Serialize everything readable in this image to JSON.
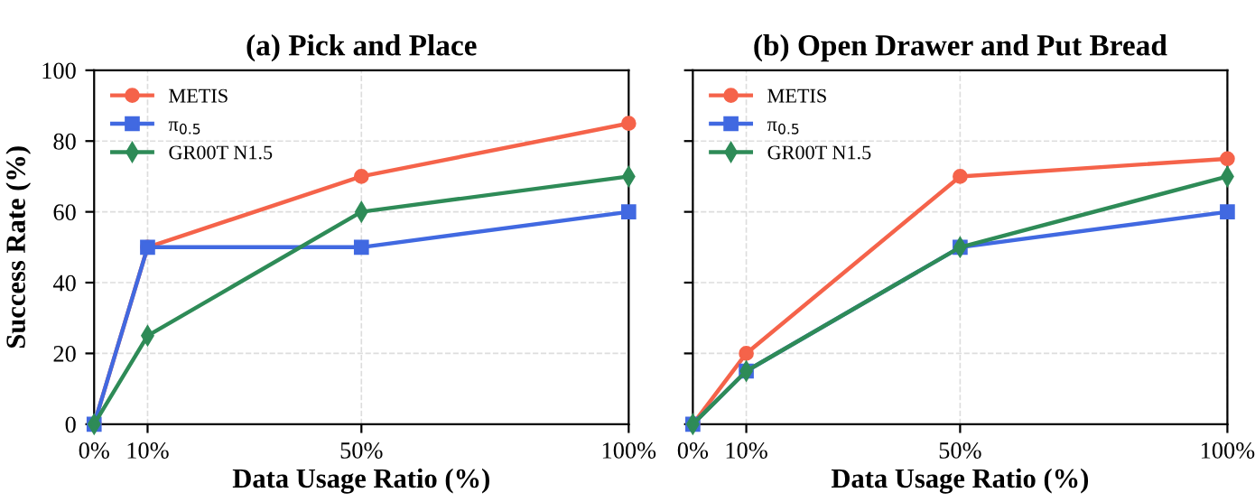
{
  "chart_data": [
    {
      "type": "line",
      "title": "(a) Pick and Place",
      "xlabel": "Data Usage Ratio (%)",
      "ylabel": "Success Rate (%)",
      "x": [
        0,
        10,
        50,
        100
      ],
      "xlim": [
        0,
        100
      ],
      "xticks": [
        {
          "value": 0,
          "label": "0%"
        },
        {
          "value": 10,
          "label": "10%"
        },
        {
          "value": 50,
          "label": "50%"
        },
        {
          "value": 100,
          "label": "100%"
        }
      ],
      "ylim": [
        0,
        100
      ],
      "yticks": [
        0,
        20,
        40,
        60,
        80,
        100
      ],
      "grid": true,
      "legend": "top left",
      "series": [
        {
          "name": "METIS",
          "color": "#f5634a",
          "marker": "circle",
          "values": [
            0,
            50,
            70,
            85
          ]
        },
        {
          "name": "π$_{0.5}$",
          "color": "#4169e1",
          "marker": "square",
          "values": [
            0,
            50,
            50,
            60
          ]
        },
        {
          "name": "GR00T N1.5",
          "color": "#2e8b57",
          "marker": "diamond",
          "values": [
            0,
            25,
            60,
            70
          ]
        }
      ]
    },
    {
      "type": "line",
      "title": "(b) Open Drawer and Put Bread",
      "xlabel": "Data Usage Ratio (%)",
      "x": [
        0,
        10,
        50,
        100
      ],
      "xlim": [
        0,
        100
      ],
      "xticks": [
        {
          "value": 0,
          "label": "0%"
        },
        {
          "value": 10,
          "label": "10%"
        },
        {
          "value": 50,
          "label": "50%"
        },
        {
          "value": 100,
          "label": "100%"
        }
      ],
      "ylim": [
        0,
        100
      ],
      "yticks": [
        0,
        20,
        40,
        60,
        80,
        100
      ],
      "tick_labels": "x",
      "grid": true,
      "legend": "top left",
      "series": [
        {
          "name": "METIS",
          "color": "#f5634a",
          "marker": "circle",
          "values": [
            0,
            20,
            70,
            75
          ]
        },
        {
          "name": "π$_{0.5}$",
          "color": "#4169e1",
          "marker": "square",
          "values": [
            0,
            15,
            50,
            60
          ]
        },
        {
          "name": "GR00T N1.5",
          "color": "#2e8b57",
          "marker": "diamond",
          "values": [
            0,
            15,
            50,
            70
          ]
        }
      ]
    }
  ]
}
